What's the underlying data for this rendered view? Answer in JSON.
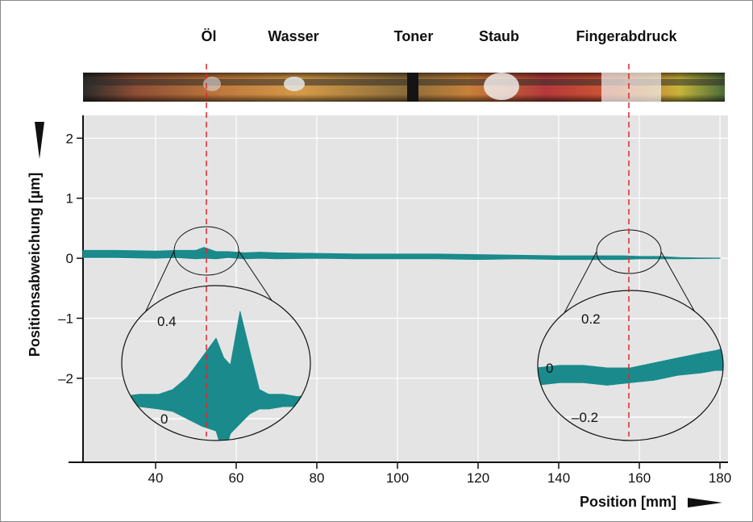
{
  "chart_data": {
    "type": "line",
    "contaminants": [
      {
        "name": "Öl",
        "x": 52
      },
      {
        "name": "Wasser",
        "x": 66
      },
      {
        "name": "Toner",
        "x": 103
      },
      {
        "name": "Staub",
        "x": 126
      },
      {
        "name": "Fingerabdruck",
        "x": 156
      }
    ],
    "xlabel": "Position [mm]",
    "ylabel": "Positionsabweichung [µm]",
    "x_ticks": [
      40,
      60,
      80,
      100,
      120,
      140,
      160,
      180
    ],
    "y_ticks": [
      2,
      1,
      0,
      -1,
      -2
    ],
    "y_tick_labels": [
      "2",
      "1",
      "0",
      "–1",
      "–2"
    ],
    "xlim": [
      22,
      182
    ],
    "ylim": [
      -3.4,
      2.3
    ],
    "grid": true,
    "series": [
      {
        "x": [
          22,
          30,
          40,
          45,
          50,
          52,
          55,
          58,
          62,
          66,
          70,
          80,
          90,
          100,
          110,
          120,
          130,
          140,
          150,
          156,
          160,
          165,
          170,
          175,
          180
        ],
        "y": [
          0.07,
          0.07,
          0.06,
          0.07,
          0.06,
          0.09,
          0.05,
          0.06,
          0.04,
          0.05,
          0.04,
          0.04,
          0.03,
          0.03,
          0.03,
          0.02,
          0.02,
          0.01,
          0.01,
          0.01,
          0.01,
          0.01,
          0.0,
          0.0,
          0.0
        ],
        "band": [
          0.06,
          0.06,
          0.06,
          0.06,
          0.07,
          0.09,
          0.06,
          0.05,
          0.05,
          0.05,
          0.05,
          0.04,
          0.04,
          0.04,
          0.04,
          0.04,
          0.03,
          0.03,
          0.03,
          0.03,
          0.02,
          0.02,
          0.01,
          0.005,
          0.002
        ],
        "color": "#1a8a8c"
      }
    ],
    "zooms": [
      {
        "center_x": 53,
        "ticks": [
          0.4,
          0
        ],
        "tick_labels": [
          "0.4",
          "0"
        ],
        "detail": {
          "x": [
            -1,
            -0.8,
            -0.6,
            -0.45,
            -0.3,
            -0.15,
            0,
            0.08,
            0.15,
            0.25,
            0.35,
            0.45,
            0.55,
            0.7,
            0.85,
            1
          ],
          "upper": [
            0.09,
            0.1,
            0.1,
            0.12,
            0.17,
            0.25,
            0.33,
            0.25,
            0.22,
            0.44,
            0.28,
            0.12,
            0.1,
            0.1,
            0.09,
            0.1
          ],
          "lower": [
            0.04,
            0.05,
            0.04,
            0.03,
            0.0,
            -0.03,
            -0.05,
            -0.15,
            -0.06,
            -0.02,
            0.02,
            0.04,
            0.04,
            0.05,
            0.05,
            0.05
          ]
        }
      },
      {
        "center_x": 157,
        "ticks": [
          0.2,
          0,
          -0.2
        ],
        "tick_labels": [
          "0.2",
          "0",
          "–0.2"
        ],
        "detail": {
          "x": [
            -1,
            -0.75,
            -0.5,
            -0.25,
            0,
            0.25,
            0.5,
            0.75,
            0.9,
            1
          ],
          "upper": [
            0.0,
            0.01,
            0.01,
            0.0,
            0.0,
            0.02,
            0.04,
            0.06,
            0.07,
            0.08
          ],
          "lower": [
            -0.07,
            -0.06,
            -0.06,
            -0.07,
            -0.06,
            -0.05,
            -0.03,
            -0.02,
            -0.01,
            -0.01
          ]
        }
      }
    ],
    "strip_colors": [
      "#1f2a2a",
      "#c87a3a",
      "#d9a441",
      "#9a6b2f",
      "#4c3a2a",
      "#e8e8e8"
    ]
  }
}
